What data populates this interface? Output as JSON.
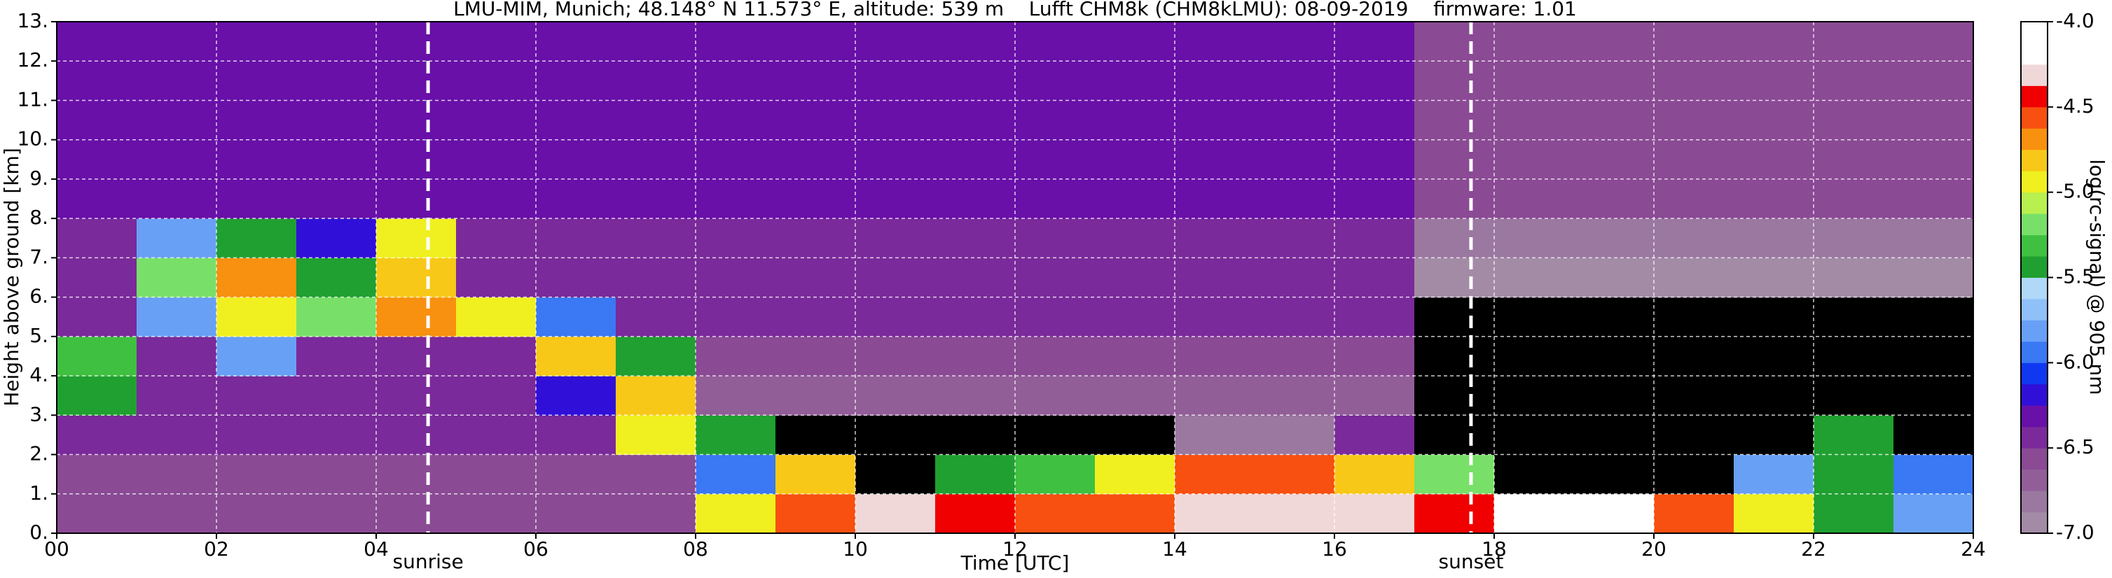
{
  "chart_data": {
    "type": "heatmap",
    "title": "LMU-MIM, Munich; 48.148° N 11.573° E, altitude: 539 m    Lufft CHM8k (CHM8kLMU): 08-09-2019    firmware: 1.01",
    "x_label": "Time [UTC]",
    "y_label": "Height above ground [km]",
    "colorbar_label": "log(rc-signal) @ 905 nm",
    "xbins": [
      0,
      1,
      2,
      3,
      4,
      5,
      6,
      7,
      8,
      9,
      10,
      11,
      12,
      13,
      14,
      15,
      16,
      17,
      18,
      19,
      20,
      21,
      22,
      23,
      24
    ],
    "ybins": [
      0,
      1,
      2,
      3,
      4,
      5,
      6,
      7,
      8,
      9,
      10,
      11,
      12,
      13
    ],
    "values": [
      [
        -6.6,
        -6.6,
        -6.6,
        -6.6,
        -6.6,
        -6.6,
        -6.6,
        -6.6,
        -5.0,
        -4.6,
        -4.3,
        -4.5,
        -4.6,
        -4.6,
        -4.3,
        -4.3,
        -4.3,
        -4.4,
        -4.2,
        -4.2,
        -4.6,
        -5.0,
        -5.5,
        -5.8
      ],
      [
        -6.6,
        -6.6,
        -6.6,
        -6.6,
        -6.6,
        -6.6,
        -6.6,
        -6.6,
        -6.0,
        -4.8,
        -7.2,
        -5.5,
        -5.3,
        -5.0,
        -4.6,
        -4.6,
        -4.8,
        -5.2,
        -7.2,
        -7.2,
        -7.2,
        -5.8,
        -5.5,
        -5.9
      ],
      [
        -6.4,
        -6.4,
        -6.4,
        -6.4,
        -6.5,
        -6.5,
        -6.5,
        -5.0,
        -5.5,
        -7.2,
        -7.2,
        -7.2,
        -7.2,
        -7.2,
        -6.8,
        -6.8,
        -6.5,
        -7.2,
        -7.2,
        -7.2,
        -7.2,
        -7.2,
        -5.5,
        -7.2
      ],
      [
        -5.5,
        -6.5,
        -6.5,
        -6.5,
        -6.5,
        -6.5,
        -6.2,
        -4.8,
        -6.7,
        -6.7,
        -6.7,
        -6.7,
        -6.7,
        -6.7,
        -6.7,
        -6.7,
        -6.7,
        -7.2,
        -7.2,
        -7.2,
        -7.2,
        -7.2,
        -7.2,
        -7.2
      ],
      [
        -5.3,
        -6.5,
        -5.8,
        -6.5,
        -6.5,
        -6.5,
        -4.8,
        -5.5,
        -6.6,
        -6.6,
        -6.6,
        -6.6,
        -6.6,
        -6.6,
        -6.6,
        -6.6,
        -6.6,
        -7.2,
        -7.2,
        -7.2,
        -7.2,
        -7.2,
        -7.2,
        -7.2
      ],
      [
        -6.5,
        -5.8,
        -4.9,
        -5.2,
        -4.7,
        -4.9,
        -6.0,
        -6.5,
        -6.5,
        -6.5,
        -6.5,
        -6.5,
        -6.5,
        -6.5,
        -6.5,
        -6.5,
        -6.5,
        -7.1,
        -7.1,
        -7.1,
        -7.1,
        -7.1,
        -7.1,
        -7.1
      ],
      [
        -6.4,
        -5.2,
        -4.7,
        -5.5,
        -4.8,
        -6.4,
        -6.4,
        -6.4,
        -6.4,
        -6.4,
        -6.4,
        -6.4,
        -6.4,
        -6.4,
        -6.4,
        -6.4,
        -6.4,
        -6.9,
        -6.9,
        -6.9,
        -6.9,
        -6.9,
        -6.9,
        -6.9
      ],
      [
        -6.4,
        -5.8,
        -5.5,
        -6.2,
        -5.0,
        -6.4,
        -6.4,
        -6.4,
        -6.4,
        -6.4,
        -6.4,
        -6.4,
        -6.4,
        -6.4,
        -6.4,
        -6.4,
        -6.4,
        -6.8,
        -6.8,
        -6.8,
        -6.8,
        -6.8,
        -6.8,
        -6.8
      ],
      [
        -6.3,
        -6.3,
        -6.3,
        -6.3,
        -6.3,
        -6.3,
        -6.3,
        -6.3,
        -6.3,
        -6.3,
        -6.3,
        -6.3,
        -6.3,
        -6.3,
        -6.3,
        -6.3,
        -6.3,
        -6.6,
        -6.6,
        -6.6,
        -6.6,
        -6.6,
        -6.6,
        -6.6
      ],
      [
        -6.3,
        -6.3,
        -6.3,
        -6.3,
        -6.3,
        -6.3,
        -6.3,
        -6.3,
        -6.3,
        -6.3,
        -6.3,
        -6.3,
        -6.3,
        -6.3,
        -6.3,
        -6.3,
        -6.3,
        -6.6,
        -6.6,
        -6.6,
        -6.6,
        -6.6,
        -6.6,
        -6.6
      ],
      [
        -6.3,
        -6.3,
        -6.3,
        -6.3,
        -6.3,
        -6.3,
        -6.3,
        -6.3,
        -6.3,
        -6.3,
        -6.3,
        -6.3,
        -6.3,
        -6.3,
        -6.3,
        -6.3,
        -6.3,
        -6.6,
        -6.6,
        -6.6,
        -6.6,
        -6.6,
        -6.6,
        -6.6
      ],
      [
        -6.3,
        -6.3,
        -6.3,
        -6.3,
        -6.3,
        -6.3,
        -6.3,
        -6.3,
        -6.3,
        -6.3,
        -6.3,
        -6.3,
        -6.3,
        -6.3,
        -6.3,
        -6.3,
        -6.3,
        -6.6,
        -6.6,
        -6.6,
        -6.6,
        -6.6,
        -6.6,
        -6.6
      ],
      [
        -6.3,
        -6.3,
        -6.3,
        -6.3,
        -6.3,
        -6.3,
        -6.3,
        -6.3,
        -6.3,
        -6.3,
        -6.3,
        -6.3,
        -6.3,
        -6.3,
        -6.3,
        -6.3,
        -6.3,
        -6.6,
        -6.6,
        -6.6,
        -6.6,
        -6.6,
        -6.6,
        -6.6
      ]
    ],
    "xlim": [
      0,
      24
    ],
    "xticks": [
      {
        "value": 0,
        "label": "00"
      },
      {
        "value": 2,
        "label": "02"
      },
      {
        "value": 4,
        "label": "04"
      },
      {
        "value": 6,
        "label": "06"
      },
      {
        "value": 8,
        "label": "08"
      },
      10,
      12,
      14,
      16,
      18,
      20,
      22,
      24
    ],
    "ylim": [
      0,
      13
    ],
    "yticks": [
      {
        "value": 0,
        "label": "0."
      },
      {
        "value": 1,
        "label": "1."
      },
      {
        "value": 2,
        "label": "2."
      },
      {
        "value": 3,
        "label": "3."
      },
      {
        "value": 4,
        "label": "4."
      },
      {
        "value": 5,
        "label": "5."
      },
      {
        "value": 6,
        "label": "6."
      },
      {
        "value": 7,
        "label": "7."
      },
      {
        "value": 8,
        "label": "8."
      },
      {
        "value": 9,
        "label": "9."
      },
      {
        "value": 10,
        "label": "10."
      },
      {
        "value": 11,
        "label": "11."
      },
      {
        "value": 12,
        "label": "12."
      },
      {
        "value": 13,
        "label": "13."
      }
    ],
    "clim": [
      -7,
      -4
    ],
    "cticks": [
      {
        "value": -4,
        "label": "-4.0"
      },
      -4.5,
      {
        "value": -5,
        "label": "-5.0"
      },
      -5.5,
      {
        "value": -6,
        "label": "-6.0"
      },
      -6.5,
      {
        "value": -7,
        "label": "-7.0"
      }
    ],
    "colors": [
      "#a38ba6",
      "#9a78a0",
      "#925e98",
      "#8a4a94",
      "#7a2a9a",
      "#6810a8",
      "#3010d8",
      "#1038f0",
      "#3a78f4",
      "#68a0f6",
      "#90c0f8",
      "#b0d8f8",
      "#20a030",
      "#40c040",
      "#78e068",
      "#b8f050",
      "#f0f020",
      "#f8c818",
      "#f89010",
      "#f85010",
      "#f00000",
      "#f0d8d8",
      "#ffffff",
      "#ffffff"
    ],
    "under_color": "#000000",
    "grid": true,
    "annotations": [
      {
        "label": "sunrise",
        "x": 4.65
      },
      {
        "label": "sunset",
        "x": 17.71
      }
    ]
  }
}
